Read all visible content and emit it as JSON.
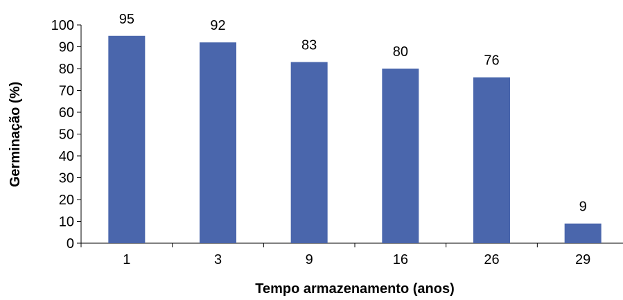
{
  "chart_data": {
    "type": "bar",
    "title": "",
    "xlabel": "Tempo armazenamento (anos)",
    "ylabel": "Germinação (%)",
    "categories": [
      "1",
      "3",
      "9",
      "16",
      "26",
      "29"
    ],
    "values": [
      95,
      92,
      83,
      80,
      76,
      9
    ],
    "data_labels": [
      "95",
      "92",
      "83",
      "80",
      "76",
      "9"
    ],
    "ylim": [
      0,
      100
    ],
    "yticks": [
      0,
      10,
      20,
      30,
      40,
      50,
      60,
      70,
      80,
      90,
      100
    ],
    "grid": false,
    "legend": "none",
    "bar_color": "#4a66ac"
  }
}
